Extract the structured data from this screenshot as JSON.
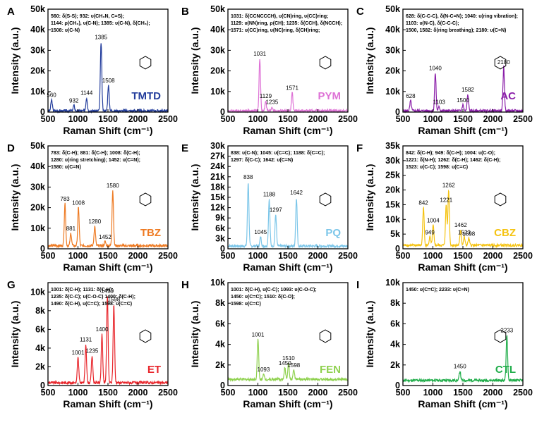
{
  "figure": {
    "xlabel": "Raman Shift (cm⁻¹)",
    "ylabel": "Intensity (a.u.)",
    "x_ticks": [
      500,
      1000,
      1500,
      2000,
      2500
    ]
  },
  "chart_data": [
    {
      "type": "line",
      "panel": "A",
      "name": "TMTD",
      "color": "#233d9c",
      "xlim": [
        500,
        2500
      ],
      "ylim": [
        0,
        50000
      ],
      "y_ticks": [
        0,
        10000,
        20000,
        30000,
        40000,
        50000
      ],
      "y_tick_labels": [
        "0",
        "10k",
        "20k",
        "30k",
        "40k",
        "50k"
      ],
      "annotation_lines": [
        "560: δ(S-S); 932: υ(CH₃N, C=S);",
        "1144: ρ(CH₃), υ(C-N); 1385: υ(C-N), δ(CH₃);",
        "1508: υ(C-N)"
      ],
      "peaks": [
        {
          "x": 560,
          "y": 6000,
          "label": "560"
        },
        {
          "x": 932,
          "y": 3200,
          "label": "932"
        },
        {
          "x": 1144,
          "y": 7000,
          "label": "1144"
        },
        {
          "x": 1385,
          "y": 34000,
          "label": "1385"
        },
        {
          "x": 1508,
          "y": 13000,
          "label": "1508"
        }
      ],
      "baseline": 600
    },
    {
      "type": "line",
      "panel": "B",
      "name": "PYM",
      "color": "#de72d6",
      "xlim": [
        500,
        2500
      ],
      "ylim": [
        0,
        50000
      ],
      "y_ticks": [
        0,
        10000,
        20000,
        30000,
        40000,
        50000
      ],
      "y_tick_labels": [
        "0",
        "10k",
        "20k",
        "30k",
        "40k",
        "50k"
      ],
      "annotation_lines": [
        "1031: δ(CCNCCCH), υ(CN)ring, υ(CC)ring;",
        "1129: υ(NN)ring, ρ(CH); 1235: δ(CCH), δ(NCCH);",
        "1571: υ(CC)ring, υ(NC)ring, δ(CH)ring;"
      ],
      "peaks": [
        {
          "x": 1031,
          "y": 26000,
          "label": "1031"
        },
        {
          "x": 1129,
          "y": 5500,
          "label": "1129"
        },
        {
          "x": 1235,
          "y": 2500,
          "label": "1235"
        },
        {
          "x": 1571,
          "y": 9500,
          "label": "1571"
        }
      ],
      "baseline": 600
    },
    {
      "type": "line",
      "panel": "C",
      "name": "AC",
      "color": "#8b1fa9",
      "xlim": [
        500,
        2500
      ],
      "ylim": [
        0,
        50000
      ],
      "y_ticks": [
        0,
        10000,
        20000,
        30000,
        40000,
        50000
      ],
      "y_tick_labels": [
        "0",
        "10k",
        "20k",
        "30k",
        "40k",
        "50k"
      ],
      "annotation_lines": [
        "628: δ(C-C-C), δ(N-C=N); 1040: υ(ring vibration);",
        "1103: υ(N-C), δ(C-C-C);",
        "1500, 1582: δ(ring breathing); 2180: υ(C≡N)"
      ],
      "peaks": [
        {
          "x": 628,
          "y": 5500,
          "label": "628"
        },
        {
          "x": 1040,
          "y": 19000,
          "label": "1040"
        },
        {
          "x": 1103,
          "y": 2500,
          "label": "1103"
        },
        {
          "x": 1500,
          "y": 3500,
          "label": "1500"
        },
        {
          "x": 1582,
          "y": 8500,
          "label": "1582"
        },
        {
          "x": 2180,
          "y": 22000,
          "label": "2180"
        }
      ],
      "baseline": 600
    },
    {
      "type": "line",
      "panel": "D",
      "name": "TBZ",
      "color": "#ee7a22",
      "xlim": [
        500,
        2500
      ],
      "ylim": [
        0,
        50000
      ],
      "y_ticks": [
        0,
        10000,
        20000,
        30000,
        40000,
        50000
      ],
      "y_tick_labels": [
        "0",
        "10k",
        "20k",
        "30k",
        "40k",
        "50k"
      ],
      "annotation_lines": [
        "783: δ(C-H); 881: δ(C-H); 1008: δ(C-H);",
        "1280: υ(ring stretching); 1452: υ(C=N);",
        "1580: υ(C=N)"
      ],
      "peaks": [
        {
          "x": 783,
          "y": 22000,
          "label": "783"
        },
        {
          "x": 881,
          "y": 7500,
          "label": "881"
        },
        {
          "x": 1008,
          "y": 20000,
          "label": "1008"
        },
        {
          "x": 1280,
          "y": 11000,
          "label": "1280"
        },
        {
          "x": 1452,
          "y": 3500,
          "label": "1452"
        },
        {
          "x": 1580,
          "y": 28500,
          "label": "1580"
        }
      ],
      "baseline": 1500
    },
    {
      "type": "line",
      "panel": "E",
      "name": "PQ",
      "color": "#7cc6e9",
      "xlim": [
        500,
        2500
      ],
      "ylim": [
        0,
        30000
      ],
      "y_ticks": [
        0,
        3000,
        6000,
        9000,
        12000,
        15000,
        18000,
        21000,
        24000,
        27000,
        30000
      ],
      "y_tick_labels": [
        "0",
        "3k",
        "6k",
        "9k",
        "12k",
        "15k",
        "18k",
        "21k",
        "24k",
        "27k",
        "30k"
      ],
      "annotation_lines": [
        "838: υ(C-N); 1045: υ(C=C); 1188: δ(C=C);",
        "1297: δ(C-C); 1642: υ(C=N)"
      ],
      "peaks": [
        {
          "x": 838,
          "y": 19500,
          "label": "838"
        },
        {
          "x": 1045,
          "y": 3500,
          "label": "1045"
        },
        {
          "x": 1188,
          "y": 14500,
          "label": "1188"
        },
        {
          "x": 1297,
          "y": 10000,
          "label": "1297"
        },
        {
          "x": 1642,
          "y": 15000,
          "label": "1642"
        }
      ],
      "baseline": 800
    },
    {
      "type": "line",
      "panel": "F",
      "name": "CBZ",
      "color": "#f5c311",
      "xlim": [
        500,
        2500
      ],
      "ylim": [
        0,
        35000
      ],
      "y_ticks": [
        0,
        5000,
        10000,
        15000,
        20000,
        25000,
        30000,
        35000
      ],
      "y_tick_labels": [
        "0",
        "5k",
        "10k",
        "15k",
        "20k",
        "25k",
        "30k",
        "35k"
      ],
      "annotation_lines": [
        "842: δ(C-H); 949: δ(C-H); 1004: υ(C-O);",
        "1221: δ(N-H); 1262: δ(C-H); 1462: δ(C-H);",
        "1523: υ(C-C); 1598: υ(C=C)"
      ],
      "peaks": [
        {
          "x": 842,
          "y": 14000,
          "label": "842"
        },
        {
          "x": 949,
          "y": 4000,
          "label": "949"
        },
        {
          "x": 1004,
          "y": 8000,
          "label": "1004"
        },
        {
          "x": 1221,
          "y": 15000,
          "label": "1221"
        },
        {
          "x": 1262,
          "y": 20000,
          "label": "1262"
        },
        {
          "x": 1462,
          "y": 6500,
          "label": "1462"
        },
        {
          "x": 1523,
          "y": 4000,
          "label": "1523"
        },
        {
          "x": 1598,
          "y": 3500,
          "label": "1598"
        }
      ],
      "baseline": 1200
    },
    {
      "type": "line",
      "panel": "G",
      "name": "ET",
      "color": "#e8242a",
      "xlim": [
        500,
        2500
      ],
      "ylim": [
        0,
        11000
      ],
      "y_ticks": [
        0,
        2000,
        4000,
        6000,
        8000,
        10000
      ],
      "y_tick_labels": [
        "0",
        "2k",
        "4k",
        "6k",
        "8k",
        "10k"
      ],
      "annotation_lines": [
        "1001: δ(C-H); 1131: δ(C-H);",
        "1235: δ(C-C); υ(C-O-C) 1400: δ(C-H);",
        "1490: δ(C-H), υ(C=C); 1598: υ(C=C)"
      ],
      "peaks": [
        {
          "x": 1001,
          "y": 3000,
          "label": "1001"
        },
        {
          "x": 1131,
          "y": 4400,
          "label": "1131"
        },
        {
          "x": 1235,
          "y": 3200,
          "label": "1235"
        },
        {
          "x": 1400,
          "y": 5500,
          "label": "1400"
        },
        {
          "x": 1490,
          "y": 9600,
          "label": "1490"
        },
        {
          "x": 1598,
          "y": 8700,
          "label": "1598"
        }
      ],
      "baseline": 300
    },
    {
      "type": "line",
      "panel": "H",
      "name": "FEN",
      "color": "#8fd14f",
      "xlim": [
        500,
        2500
      ],
      "ylim": [
        0,
        10000
      ],
      "y_ticks": [
        0,
        2000,
        4000,
        6000,
        8000,
        10000
      ],
      "y_tick_labels": [
        "0",
        "2k",
        "4k",
        "6k",
        "8k",
        "10k"
      ],
      "annotation_lines": [
        "1001: δ(C-H), υ(C-C); 1093: υ(C-O-C);",
        "1450: υ(C=C); 1510: δ(C-O);",
        "1598: υ(C=C)"
      ],
      "peaks": [
        {
          "x": 1001,
          "y": 4500,
          "label": "1001"
        },
        {
          "x": 1093,
          "y": 1100,
          "label": "1093"
        },
        {
          "x": 1450,
          "y": 1700,
          "label": "1450"
        },
        {
          "x": 1510,
          "y": 2200,
          "label": "1510"
        },
        {
          "x": 1598,
          "y": 1500,
          "label": "1598"
        }
      ],
      "baseline": 600
    },
    {
      "type": "line",
      "panel": "I",
      "name": "CTL",
      "color": "#20ad4a",
      "xlim": [
        500,
        2500
      ],
      "ylim": [
        0,
        10000
      ],
      "y_ticks": [
        0,
        2000,
        4000,
        6000,
        8000,
        10000
      ],
      "y_tick_labels": [
        "0",
        "2k",
        "4k",
        "6k",
        "8k",
        "10k"
      ],
      "annotation_lines": [
        "1450: υ(C=C);  2233: υ(C≡N)"
      ],
      "peaks": [
        {
          "x": 1450,
          "y": 1400,
          "label": "1450"
        },
        {
          "x": 2233,
          "y": 4900,
          "label": "2233"
        }
      ],
      "baseline": 500
    }
  ]
}
